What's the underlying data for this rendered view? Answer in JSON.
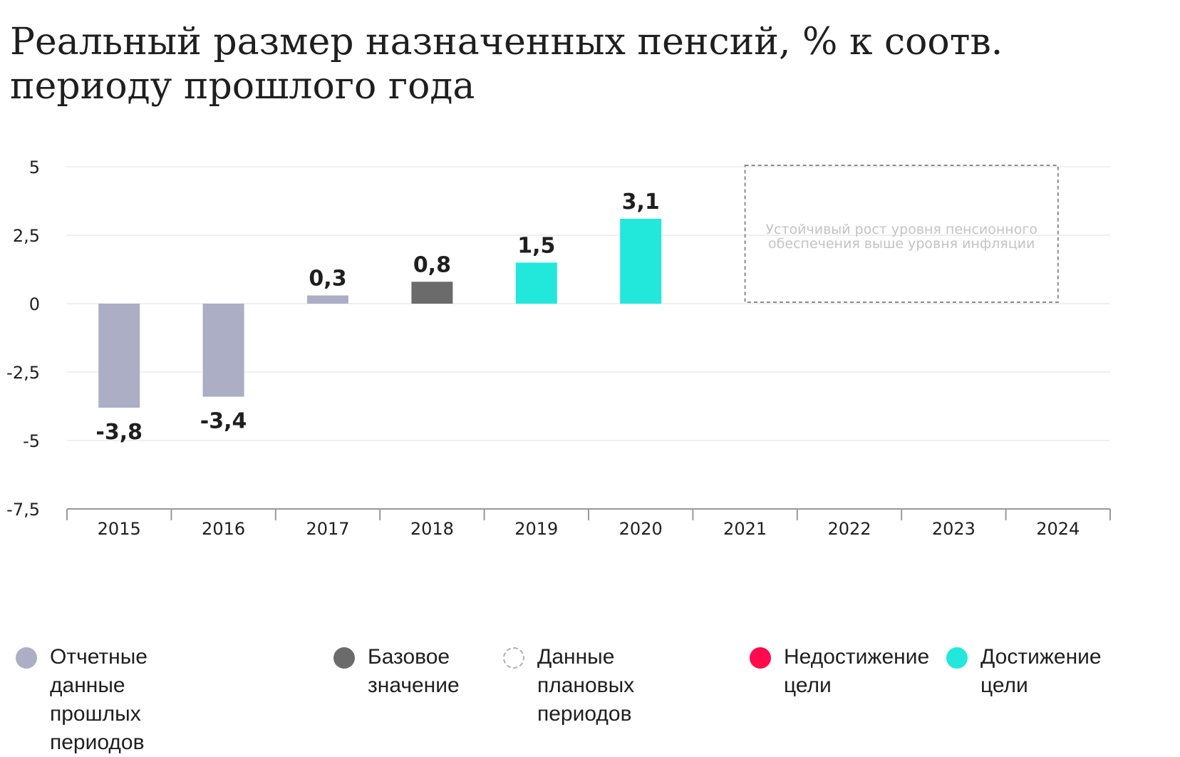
{
  "title": "Реальный размер назначенных пенсий, % к соотв. периоду прошлого года",
  "colors": {
    "reported": "#abaec4",
    "base": "#6b6b6b",
    "plan": "#b0b0b0",
    "not_achieved": "#ff0a4c",
    "achieved": "#22e8dc",
    "grid": "#ececec",
    "axis": "#9a9a9a",
    "text": "#1f1f1f"
  },
  "chart_data": {
    "type": "bar",
    "title": "Реальный размер назначенных пенсий, % к соотв. периоду прошлого года",
    "xlabel": "",
    "ylabel": "",
    "ylim": [
      -7.5,
      5
    ],
    "yticks": [
      5,
      2.5,
      0,
      -2.5,
      -5,
      -7.5
    ],
    "ytick_labels": [
      "5",
      "2,5",
      "0",
      "-2,5",
      "-5",
      "-7,5"
    ],
    "grid": true,
    "categories": [
      "2015",
      "2016",
      "2017",
      "2018",
      "2019",
      "2020",
      "2021",
      "2022",
      "2023",
      "2024"
    ],
    "values": [
      -3.8,
      -3.4,
      0.3,
      0.8,
      1.5,
      3.1,
      null,
      null,
      null,
      null
    ],
    "value_labels": [
      "-3,8",
      "-3,4",
      "0,3",
      "0,8",
      "1,5",
      "3,1",
      "",
      "",
      "",
      ""
    ],
    "bar_status": [
      "reported",
      "reported",
      "reported",
      "base",
      "achieved",
      "achieved",
      "plan",
      "plan",
      "plan",
      "plan"
    ],
    "plan_annotation": {
      "text": "Устойчивый рост уровня пенсионного обеспечения выше уровня инфляции",
      "from_category": "2021",
      "to_category": "2024",
      "y_range": [
        0,
        5
      ]
    }
  },
  "legend": [
    {
      "key": "reported",
      "label": "Отчетные данные\nпрошлых периодов",
      "style": "filled"
    },
    {
      "key": "base",
      "label": "Базовое\nзначение",
      "style": "filled"
    },
    {
      "key": "plan",
      "label": "Данные плановых\nпериодов",
      "style": "dashed"
    },
    {
      "key": "not_achieved",
      "label": "Недостижение\nцели",
      "style": "filled"
    },
    {
      "key": "achieved",
      "label": "Достижение\nцели",
      "style": "filled"
    }
  ]
}
